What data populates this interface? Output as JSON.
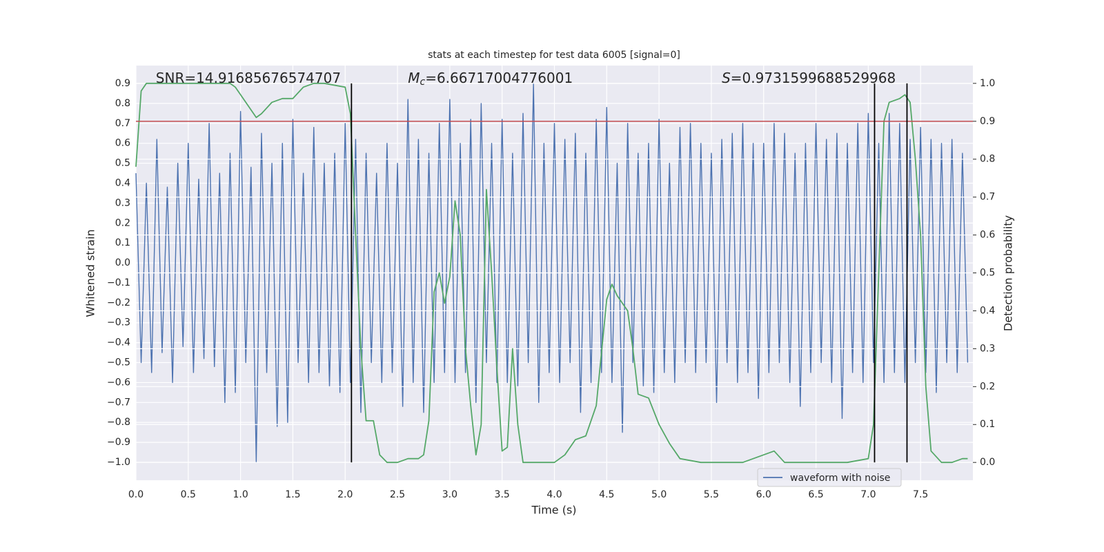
{
  "chart_data": {
    "type": "line",
    "title": "stats at each timestep for test data 6005 [signal=0]",
    "xlabel": "Time (s)",
    "ylabel": "Whitened strain",
    "y2label": "Detection probability",
    "xlim": [
      0,
      8
    ],
    "ylim": [
      -1.09,
      0.99
    ],
    "y2lim": [
      -0.047,
      1.047
    ],
    "xticks": [
      {
        "value": 0,
        "label": "0.0"
      },
      0.5,
      {
        "value": 1,
        "label": "1.0"
      },
      1.5,
      {
        "value": 2,
        "label": "2.0"
      },
      2.5,
      {
        "value": 3,
        "label": "3.0"
      },
      3.5,
      {
        "value": 4,
        "label": "4.0"
      },
      4.5,
      {
        "value": 5,
        "label": "5.0"
      },
      5.5,
      {
        "value": 6,
        "label": "6.0"
      },
      6.5,
      {
        "value": 7,
        "label": "7.0"
      },
      7.5
    ],
    "yticks": [
      {
        "value": -1.0,
        "label": "−1.0"
      },
      {
        "value": -0.9,
        "label": "−0.9"
      },
      {
        "value": -0.8,
        "label": "−0.8"
      },
      {
        "value": -0.7,
        "label": "−0.7"
      },
      {
        "value": -0.6,
        "label": "−0.6"
      },
      {
        "value": -0.5,
        "label": "−0.5"
      },
      {
        "value": -0.4,
        "label": "−0.4"
      },
      {
        "value": -0.3,
        "label": "−0.3"
      },
      {
        "value": -0.2,
        "label": "−0.2"
      },
      {
        "value": -0.1,
        "label": "−0.1"
      },
      {
        "value": 0,
        "label": "0.0"
      },
      0.1,
      0.2,
      0.3,
      0.4,
      0.5,
      0.6,
      0.7,
      0.8,
      0.9
    ],
    "y2ticks": [
      {
        "value": 0,
        "label": "0.0"
      },
      0.1,
      0.2,
      0.3,
      0.4,
      0.5,
      0.6,
      0.7,
      0.8,
      0.9,
      {
        "value": 1,
        "label": "1.0"
      }
    ],
    "grid": true,
    "legend": "lower right",
    "series": [
      {
        "name": "waveform with noise",
        "color": "#4c72b0",
        "axis": "y",
        "x": [
          0,
          0.05,
          0.1,
          0.15,
          0.2,
          0.25,
          0.3,
          0.35,
          0.4,
          0.45,
          0.5,
          0.55,
          0.6,
          0.65,
          0.7,
          0.75,
          0.8,
          0.85,
          0.9,
          0.95,
          1,
          1.05,
          1.1,
          1.15,
          1.2,
          1.25,
          1.3,
          1.35,
          1.4,
          1.45,
          1.5,
          1.55,
          1.6,
          1.65,
          1.7,
          1.75,
          1.8,
          1.85,
          1.9,
          1.95,
          2,
          2.05,
          2.1,
          2.15,
          2.2,
          2.25,
          2.3,
          2.35,
          2.4,
          2.45,
          2.5,
          2.55,
          2.6,
          2.65,
          2.7,
          2.75,
          2.8,
          2.85,
          2.9,
          2.95,
          3,
          3.05,
          3.1,
          3.15,
          3.2,
          3.25,
          3.3,
          3.35,
          3.4,
          3.45,
          3.5,
          3.55,
          3.6,
          3.65,
          3.7,
          3.75,
          3.8,
          3.85,
          3.9,
          3.95,
          4,
          4.05,
          4.1,
          4.15,
          4.2,
          4.25,
          4.3,
          4.35,
          4.4,
          4.45,
          4.5,
          4.55,
          4.6,
          4.65,
          4.7,
          4.75,
          4.8,
          4.85,
          4.9,
          4.95,
          5,
          5.05,
          5.1,
          5.15,
          5.2,
          5.25,
          5.3,
          5.35,
          5.4,
          5.45,
          5.5,
          5.55,
          5.6,
          5.65,
          5.7,
          5.75,
          5.8,
          5.85,
          5.9,
          5.95,
          6,
          6.05,
          6.1,
          6.15,
          6.2,
          6.25,
          6.3,
          6.35,
          6.4,
          6.45,
          6.5,
          6.55,
          6.6,
          6.65,
          6.7,
          6.75,
          6.8,
          6.85,
          6.9,
          6.95,
          7,
          7.05,
          7.1,
          7.15,
          7.2,
          7.25,
          7.3,
          7.35,
          7.4,
          7.45,
          7.5,
          7.55,
          7.6,
          7.65,
          7.7,
          7.75,
          7.8,
          7.85,
          7.9,
          7.95
        ],
        "values": [
          0.45,
          -0.5,
          0.4,
          -0.55,
          0.62,
          -0.45,
          0.38,
          -0.6,
          0.5,
          -0.42,
          0.6,
          -0.55,
          0.42,
          -0.48,
          0.7,
          -0.52,
          0.45,
          -0.7,
          0.55,
          -0.65,
          0.76,
          -0.5,
          0.48,
          -1.0,
          0.65,
          -0.55,
          0.5,
          -0.82,
          0.6,
          -0.8,
          0.72,
          -0.5,
          0.45,
          -0.6,
          0.68,
          -0.55,
          0.5,
          -0.62,
          0.55,
          -0.65,
          0.7,
          -0.6,
          0.62,
          -0.75,
          0.55,
          -0.5,
          0.45,
          -0.6,
          0.6,
          -0.55,
          0.5,
          -0.72,
          0.82,
          -0.6,
          0.62,
          -0.75,
          0.55,
          -0.6,
          0.7,
          -0.55,
          0.82,
          -0.6,
          0.6,
          -0.55,
          0.72,
          -0.7,
          0.8,
          -0.5,
          0.6,
          -0.6,
          0.72,
          -0.6,
          0.55,
          -0.62,
          0.75,
          -0.5,
          0.9,
          -0.7,
          0.6,
          -0.55,
          0.7,
          -0.6,
          0.62,
          -0.5,
          0.65,
          -0.75,
          0.55,
          -0.6,
          0.72,
          -0.55,
          0.78,
          -0.6,
          0.5,
          -0.85,
          0.7,
          -0.5,
          0.55,
          -0.62,
          0.6,
          -0.65,
          0.72,
          -0.55,
          0.5,
          -0.6,
          0.68,
          -0.5,
          0.7,
          -0.55,
          0.6,
          -0.5,
          0.55,
          -0.7,
          0.62,
          -0.5,
          0.65,
          -0.6,
          0.7,
          -0.55,
          0.6,
          -0.68,
          0.6,
          -0.55,
          0.7,
          -0.5,
          0.65,
          -0.6,
          0.55,
          -0.72,
          0.6,
          -0.55,
          0.7,
          -0.5,
          0.62,
          -0.6,
          0.65,
          -0.78,
          0.6,
          -0.55,
          0.7,
          -0.6,
          0.75,
          -0.5,
          0.6,
          -0.6,
          0.75,
          -0.55,
          0.7,
          -0.6,
          0.62,
          -0.5,
          0.68,
          -0.55,
          0.62,
          -0.65,
          0.6,
          -0.5,
          0.62,
          -0.55,
          0.55,
          -0.5
        ]
      },
      {
        "color": "#55a868",
        "axis": "y2",
        "x": [
          0,
          0.05,
          0.1,
          0.2,
          0.3,
          0.4,
          0.5,
          0.6,
          0.7,
          0.8,
          0.9,
          0.95,
          1,
          1.1,
          1.15,
          1.2,
          1.3,
          1.4,
          1.5,
          1.6,
          1.7,
          1.8,
          2,
          2.05,
          2.1,
          2.15,
          2.2,
          2.27,
          2.33,
          2.4,
          2.5,
          2.6,
          2.7,
          2.75,
          2.8,
          2.85,
          2.9,
          2.95,
          3,
          3.05,
          3.1,
          3.15,
          3.2,
          3.25,
          3.3,
          3.35,
          3.4,
          3.45,
          3.5,
          3.55,
          3.6,
          3.65,
          3.7,
          3.8,
          3.9,
          4,
          4.1,
          4.2,
          4.3,
          4.4,
          4.5,
          4.55,
          4.6,
          4.7,
          4.75,
          4.8,
          4.9,
          5,
          5.1,
          5.2,
          5.4,
          5.6,
          5.8,
          6,
          6.1,
          6.2,
          6.5,
          6.8,
          7,
          7.05,
          7.1,
          7.15,
          7.2,
          7.3,
          7.35,
          7.4,
          7.45,
          7.5,
          7.55,
          7.6,
          7.7,
          7.8,
          7.9,
          7.95
        ],
        "values": [
          0.78,
          0.98,
          1.0,
          1.0,
          1.0,
          1.0,
          1.0,
          1.0,
          1.0,
          1.0,
          1.0,
          0.99,
          0.97,
          0.93,
          0.91,
          0.92,
          0.95,
          0.96,
          0.96,
          0.99,
          1.0,
          1.0,
          0.99,
          0.92,
          0.6,
          0.3,
          0.11,
          0.11,
          0.02,
          0.0,
          0.0,
          0.01,
          0.01,
          0.02,
          0.11,
          0.45,
          0.5,
          0.42,
          0.49,
          0.69,
          0.6,
          0.3,
          0.15,
          0.02,
          0.1,
          0.72,
          0.5,
          0.25,
          0.03,
          0.04,
          0.3,
          0.1,
          0.0,
          0.0,
          0.0,
          0.0,
          0.02,
          0.06,
          0.07,
          0.15,
          0.43,
          0.47,
          0.44,
          0.4,
          0.3,
          0.18,
          0.17,
          0.1,
          0.05,
          0.01,
          0.0,
          0.0,
          0.0,
          0.02,
          0.03,
          0.0,
          0.0,
          0.0,
          0.01,
          0.1,
          0.5,
          0.9,
          0.95,
          0.96,
          0.97,
          0.95,
          0.8,
          0.6,
          0.2,
          0.03,
          0.0,
          0.0,
          0.01,
          0.01
        ]
      }
    ],
    "hline": {
      "y2": 0.9,
      "color": "#c44e52"
    },
    "vlines": {
      "x": [
        2.06,
        7.06,
        7.37
      ],
      "y2": [
        0,
        1
      ],
      "color": "#000000"
    },
    "annotations": [
      {
        "name": "SNR",
        "text": "=14.91685676574707",
        "italic": false,
        "x": 0.19
      },
      {
        "name": "M",
        "sub": "c",
        "text": "=6.66717004776001",
        "italic": true,
        "x": 2.6
      },
      {
        "name": "S",
        "text": "=0.9731599688529968",
        "italic": true,
        "x": 5.6
      }
    ]
  }
}
